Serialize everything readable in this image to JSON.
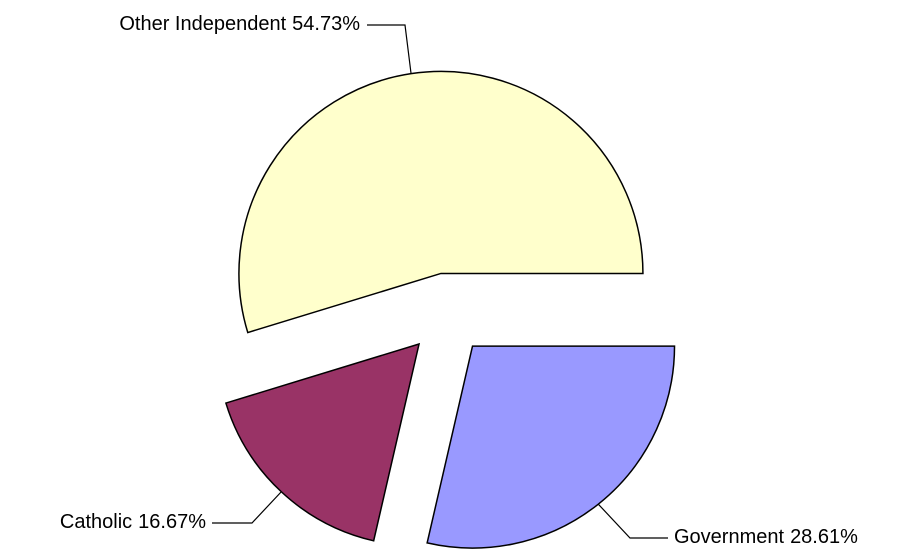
{
  "chart_data": {
    "type": "pie",
    "categories": [
      "Other Independent",
      "Catholic",
      "Government"
    ],
    "values": [
      54.73,
      16.67,
      28.61
    ],
    "value_labels": [
      "54.73%",
      "16.67%",
      "28.61%"
    ],
    "colors": [
      "#ffffcc",
      "#993366",
      "#9999ff"
    ]
  }
}
